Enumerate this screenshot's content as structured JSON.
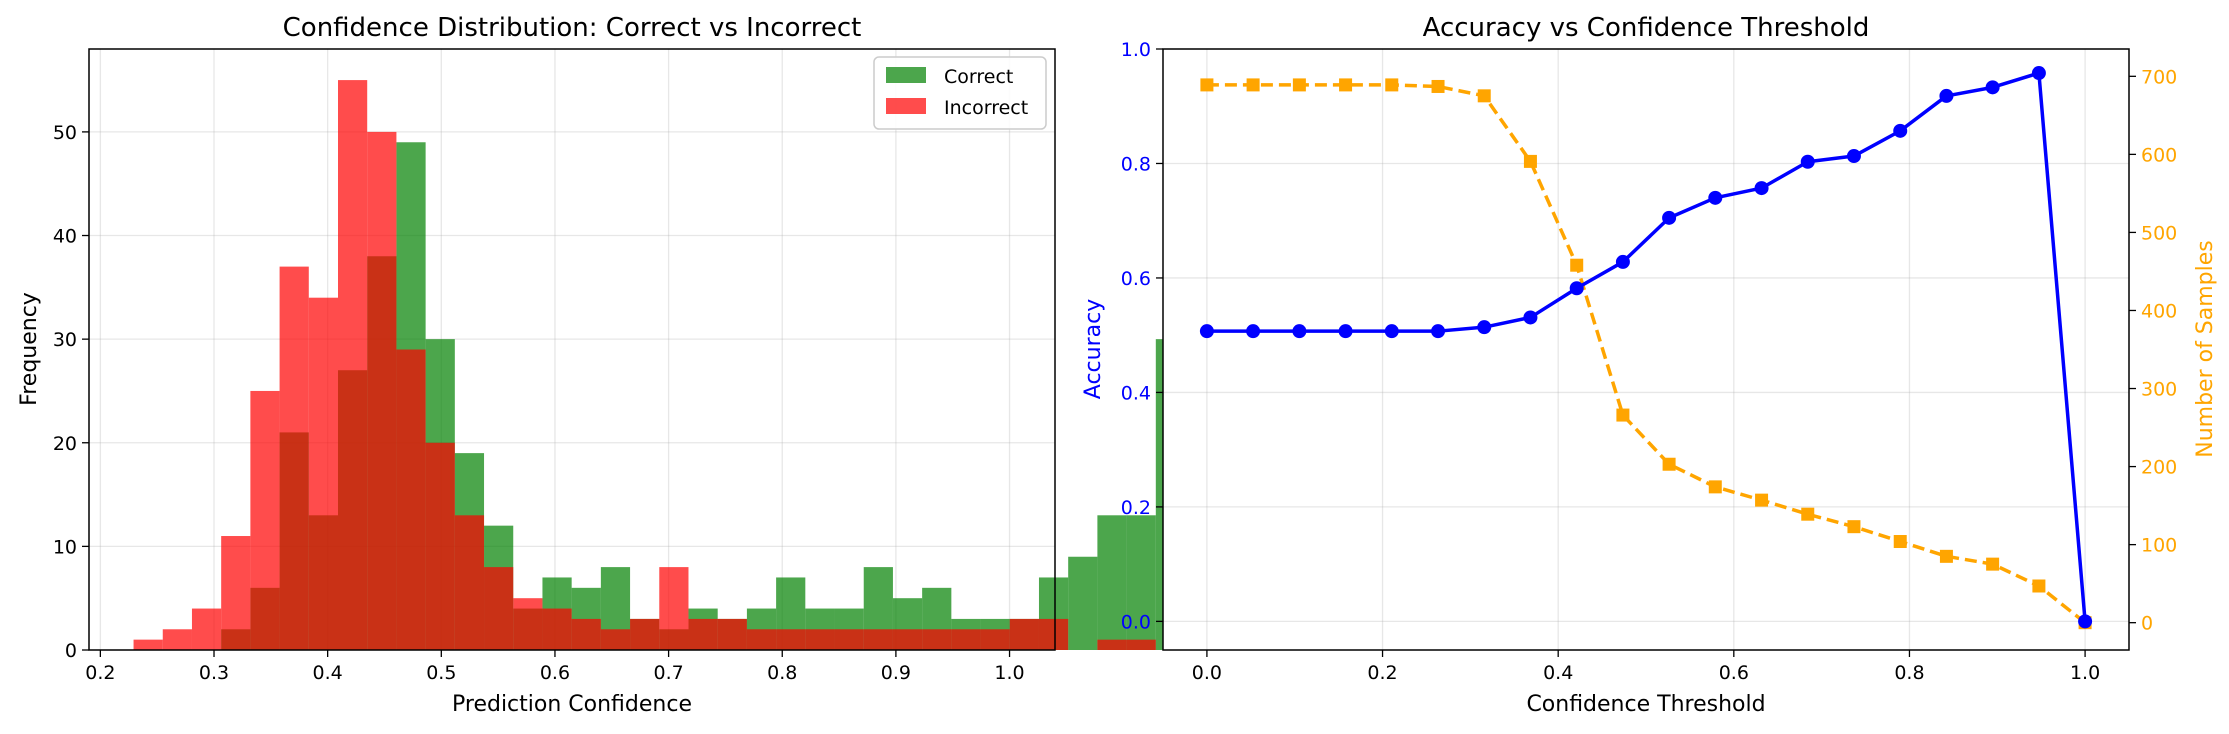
{
  "chart_data": [
    {
      "type": "bar",
      "subtype": "histogram",
      "title": "Confidence Distribution: Correct vs Incorrect",
      "xlabel": "Prediction Confidence",
      "ylabel": "Frequency",
      "xlim": [
        0.19,
        1.04
      ],
      "ylim": [
        0,
        58
      ],
      "xticks": [
        "0.2",
        "0.3",
        "0.4",
        "0.5",
        "0.6",
        "0.7",
        "0.8",
        "0.9",
        "1.0"
      ],
      "yticks": [
        "0",
        "10",
        "20",
        "30",
        "40",
        "50"
      ],
      "grid": true,
      "legend": "top-right",
      "bin_start": 0.2292,
      "bin_width": 0.0257,
      "series": [
        {
          "name": "Correct",
          "color": "#008000",
          "alpha": 0.7,
          "values": [
            0,
            0,
            0,
            2,
            6,
            21,
            13,
            27,
            38,
            49,
            30,
            19,
            12,
            4,
            7,
            6,
            8,
            3,
            2,
            4,
            3,
            4,
            7,
            4,
            4,
            8,
            5,
            6,
            3,
            3,
            3,
            7,
            9,
            13,
            13,
            30
          ]
        },
        {
          "name": "Incorrect",
          "color": "#ff0000",
          "alpha": 0.7,
          "values": [
            1,
            2,
            4,
            11,
            25,
            37,
            34,
            55,
            50,
            29,
            20,
            13,
            8,
            5,
            4,
            3,
            2,
            3,
            8,
            3,
            3,
            2,
            2,
            2,
            2,
            2,
            2,
            2,
            2,
            2,
            3,
            3,
            0,
            1,
            1,
            0
          ]
        }
      ]
    },
    {
      "type": "line",
      "title": "Accuracy vs Confidence Threshold",
      "xlabel": "Confidence Threshold",
      "ylabel": "Accuracy",
      "y2label": "Number of Samples",
      "xlim": [
        -0.05,
        1.05
      ],
      "ylim": [
        -0.05,
        1.0
      ],
      "y2lim": [
        -35,
        735
      ],
      "xticks": [
        "0.0",
        "0.2",
        "0.4",
        "0.6",
        "0.8",
        "1.0"
      ],
      "yticks": [
        "0.0",
        "0.2",
        "0.4",
        "0.6",
        "0.8",
        "1.0"
      ],
      "y2ticks": [
        "0",
        "100",
        "200",
        "300",
        "400",
        "500",
        "600",
        "700"
      ],
      "grid": true,
      "x": [
        0.0,
        0.0526,
        0.1053,
        0.1579,
        0.2105,
        0.2632,
        0.3158,
        0.3684,
        0.4211,
        0.4737,
        0.5263,
        0.5789,
        0.6316,
        0.6842,
        0.7368,
        0.7895,
        0.8421,
        0.8947,
        0.9474,
        1.0
      ],
      "series": [
        {
          "name": "Accuracy",
          "axis": "left",
          "color": "#0000ff",
          "marker": "circle",
          "linestyle": "solid",
          "values": [
            0.507,
            0.507,
            0.507,
            0.507,
            0.507,
            0.507,
            0.514,
            0.531,
            0.582,
            0.628,
            0.705,
            0.74,
            0.757,
            0.803,
            0.813,
            0.857,
            0.918,
            0.933,
            0.958,
            0.0
          ]
        },
        {
          "name": "Number of Samples",
          "axis": "right",
          "color": "#ffa500",
          "marker": "square",
          "linestyle": "dashed",
          "values": [
            689,
            689,
            689,
            689,
            689,
            687,
            675,
            591,
            458,
            266,
            203,
            174,
            157,
            139,
            123,
            104,
            85,
            75,
            47,
            0
          ]
        }
      ]
    }
  ]
}
